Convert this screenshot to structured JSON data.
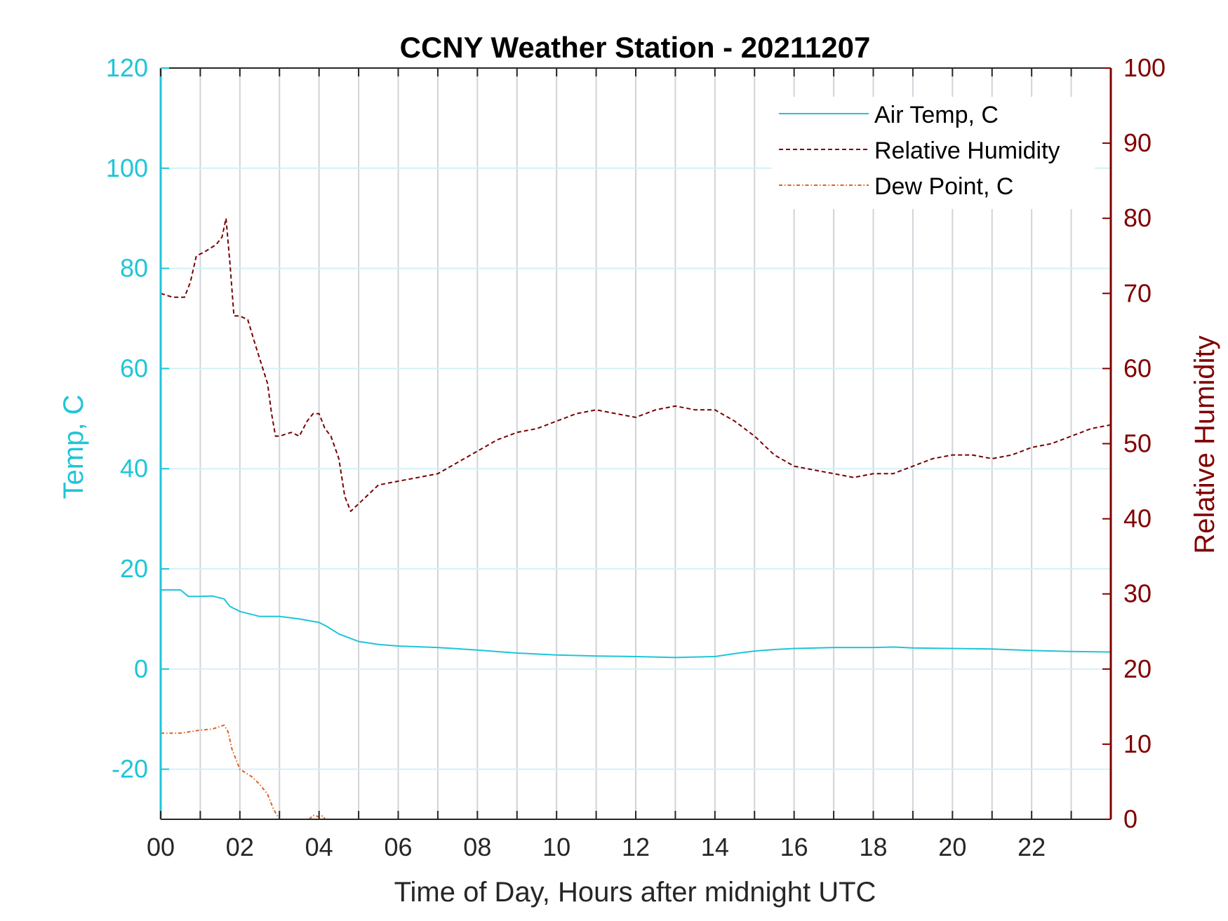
{
  "chart_data": {
    "type": "line",
    "title": "CCNY Weather Station - 20211207",
    "xlabel": "Time of Day, Hours after midnight UTC",
    "ylabel_left": "Temp, C",
    "ylabel_right": "Relative Humidity",
    "xlim": [
      0,
      24
    ],
    "ylim_left": [
      -30,
      120
    ],
    "ylim_right": [
      0,
      100
    ],
    "x_ticks": [
      0,
      2,
      4,
      6,
      8,
      10,
      12,
      14,
      16,
      18,
      20,
      22
    ],
    "x_tick_labels": [
      "00",
      "02",
      "04",
      "06",
      "08",
      "10",
      "12",
      "14",
      "16",
      "18",
      "20",
      "22"
    ],
    "x_grid_step": 1,
    "y_ticks_left": [
      -20,
      0,
      20,
      40,
      60,
      80,
      100,
      120
    ],
    "y_tick_labels_left": [
      "-20",
      "0",
      "20",
      "40",
      "60",
      "80",
      "100",
      "120"
    ],
    "y_ticks_right": [
      0,
      10,
      20,
      30,
      40,
      50,
      60,
      70,
      80,
      90,
      100
    ],
    "y_tick_labels_right": [
      "0",
      "10",
      "20",
      "30",
      "40",
      "50",
      "60",
      "70",
      "80",
      "90",
      "100"
    ],
    "grid": true,
    "legend_position": "top-right",
    "colors": {
      "left_axis": "#1ec5d8",
      "right_axis": "#800000",
      "air_temp": "#1ec5d8",
      "relative_humidity": "#7a0000",
      "dew_point": "#e0621f",
      "grid_vertical": "#d0d4d8",
      "grid_horizontal": "#d4f1f6"
    },
    "series": [
      {
        "name": "Air Temp, C",
        "axis": "left",
        "style": "solid",
        "x": [
          0,
          0.5,
          0.7,
          1.0,
          1.3,
          1.6,
          1.75,
          2.0,
          2.5,
          3.0,
          3.5,
          4.0,
          4.2,
          4.5,
          5.0,
          5.5,
          6.0,
          7.0,
          8.0,
          9.0,
          10.0,
          11.0,
          12.0,
          13.0,
          14.0,
          14.5,
          15.0,
          15.5,
          16.0,
          17.0,
          18.0,
          18.5,
          19.0,
          20.0,
          21.0,
          22.0,
          23.0,
          24.0
        ],
        "y": [
          15.8,
          15.8,
          14.5,
          14.5,
          14.6,
          14.0,
          12.5,
          11.5,
          10.5,
          10.5,
          10.0,
          9.3,
          8.5,
          7.0,
          5.5,
          4.9,
          4.6,
          4.3,
          3.8,
          3.2,
          2.8,
          2.6,
          2.5,
          2.3,
          2.5,
          3.1,
          3.6,
          3.9,
          4.1,
          4.3,
          4.3,
          4.4,
          4.2,
          4.1,
          4.0,
          3.7,
          3.5,
          3.4
        ]
      },
      {
        "name": "Relative Humidity",
        "axis": "right",
        "style": "dashed",
        "x": [
          0,
          0.3,
          0.6,
          0.75,
          0.9,
          1.1,
          1.4,
          1.55,
          1.65,
          1.75,
          1.85,
          2.0,
          2.2,
          2.4,
          2.7,
          2.8,
          2.9,
          3.0,
          3.3,
          3.5,
          3.7,
          3.85,
          4.0,
          4.15,
          4.3,
          4.5,
          4.65,
          4.8,
          5.0,
          5.5,
          6.0,
          6.5,
          7.0,
          7.5,
          8.0,
          8.5,
          9.0,
          9.5,
          10.0,
          10.5,
          11.0,
          11.5,
          12.0,
          12.5,
          13.0,
          13.5,
          14.0,
          14.5,
          15.0,
          15.5,
          16.0,
          16.5,
          17.0,
          17.5,
          18.0,
          18.5,
          19.0,
          19.5,
          20.0,
          20.5,
          21.0,
          21.5,
          22.0,
          22.5,
          23.0,
          23.5,
          24.0
        ],
        "y": [
          70,
          69.5,
          69.5,
          71.5,
          75,
          75.5,
          76.5,
          77.5,
          80,
          74,
          67,
          67,
          66.5,
          63,
          58,
          54,
          51,
          51,
          51.5,
          51,
          53,
          54,
          54,
          52,
          51,
          48,
          43,
          41,
          42,
          44.5,
          45,
          45.5,
          46,
          47.5,
          49,
          50.5,
          51.5,
          52,
          53,
          54,
          54.5,
          54,
          53.5,
          54.5,
          55,
          54.5,
          54.5,
          53,
          51,
          48.5,
          47,
          46.5,
          46,
          45.5,
          46,
          46,
          47,
          48,
          48.5,
          48.5,
          48,
          48.5,
          49.5,
          50,
          51,
          52,
          52.5
        ]
      },
      {
        "name": "Dew Point, C",
        "axis": "left",
        "style": "dashdot",
        "x": [
          0,
          0.5,
          1.0,
          1.3,
          1.6,
          1.7,
          1.8,
          2.0,
          2.1,
          2.3,
          2.5,
          2.7,
          2.85,
          3.0
        ],
        "y": [
          -12.8,
          -12.8,
          -12.2,
          -12.0,
          -11.2,
          -12.5,
          -16,
          -20,
          -20.5,
          -21.5,
          -23,
          -25,
          -28,
          -30
        ]
      },
      {
        "name": "",
        "axis": "left",
        "style": "dashdot",
        "x": [
          3.75,
          3.85,
          4.0,
          4.1,
          4.15
        ],
        "y": [
          -30,
          -29.2,
          -29.5,
          -29.3,
          -30
        ]
      }
    ]
  }
}
